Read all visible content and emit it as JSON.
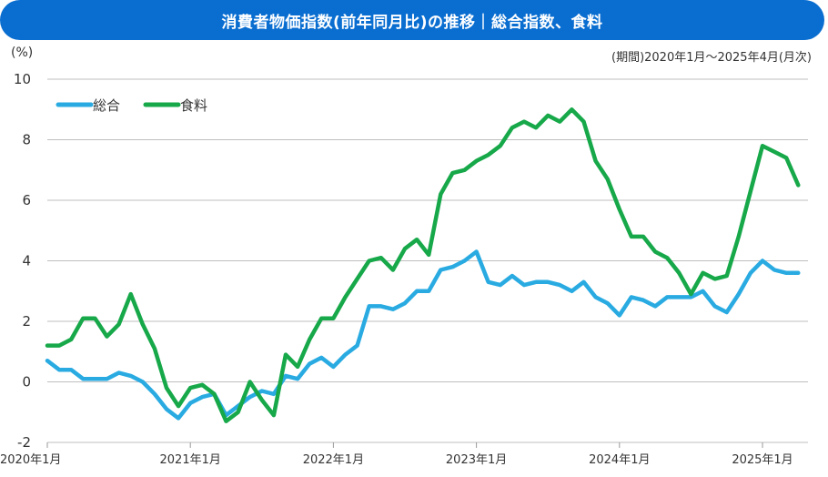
{
  "title": "消費者物価指数(前年同月比)の推移｜総合指数、食料",
  "unit": "(%)",
  "period": "(期間)2020年1月～2025年4月(月次)",
  "chart_data": {
    "type": "line",
    "ylim": [
      -2,
      10
    ],
    "yticks": [
      -2,
      0,
      2,
      4,
      6,
      8,
      10
    ],
    "xticks": [
      {
        "index": 0,
        "label": "2020年1月"
      },
      {
        "index": 12,
        "label": "2021年1月"
      },
      {
        "index": 24,
        "label": "2022年1月"
      },
      {
        "index": 36,
        "label": "2023年1月"
      },
      {
        "index": 48,
        "label": "2024年1月"
      },
      {
        "index": 60,
        "label": "2025年1月"
      }
    ],
    "grid": true,
    "legend": "top-left",
    "series": [
      {
        "name": "総合",
        "color": "#29abe2",
        "values": [
          0.7,
          0.4,
          0.4,
          0.1,
          0.1,
          0.1,
          0.3,
          0.2,
          0.0,
          -0.4,
          -0.9,
          -1.2,
          -0.7,
          -0.5,
          -0.4,
          -1.1,
          -0.8,
          -0.5,
          -0.3,
          -0.4,
          0.2,
          0.1,
          0.6,
          0.8,
          0.5,
          0.9,
          1.2,
          2.5,
          2.5,
          2.4,
          2.6,
          3.0,
          3.0,
          3.7,
          3.8,
          4.0,
          4.3,
          3.3,
          3.2,
          3.5,
          3.2,
          3.3,
          3.3,
          3.2,
          3.0,
          3.3,
          2.8,
          2.6,
          2.2,
          2.8,
          2.7,
          2.5,
          2.8,
          2.8,
          2.8,
          3.0,
          2.5,
          2.3,
          2.9,
          3.6,
          4.0,
          3.7,
          3.6,
          3.6
        ]
      },
      {
        "name": "食料",
        "color": "#17a84a",
        "values": [
          1.2,
          1.2,
          1.4,
          2.1,
          2.1,
          1.5,
          1.9,
          2.9,
          1.9,
          1.1,
          -0.2,
          -0.8,
          -0.2,
          -0.1,
          -0.4,
          -1.3,
          -1.0,
          0.0,
          -0.6,
          -1.1,
          0.9,
          0.5,
          1.4,
          2.1,
          2.1,
          2.8,
          3.4,
          4.0,
          4.1,
          3.7,
          4.4,
          4.7,
          4.2,
          6.2,
          6.9,
          7.0,
          7.3,
          7.5,
          7.8,
          8.4,
          8.6,
          8.4,
          8.8,
          8.6,
          9.0,
          8.6,
          7.3,
          6.7,
          5.7,
          4.8,
          4.8,
          4.3,
          4.1,
          3.6,
          2.9,
          3.6,
          3.4,
          3.5,
          4.8,
          6.3,
          7.8,
          7.6,
          7.4,
          6.5
        ]
      }
    ]
  }
}
